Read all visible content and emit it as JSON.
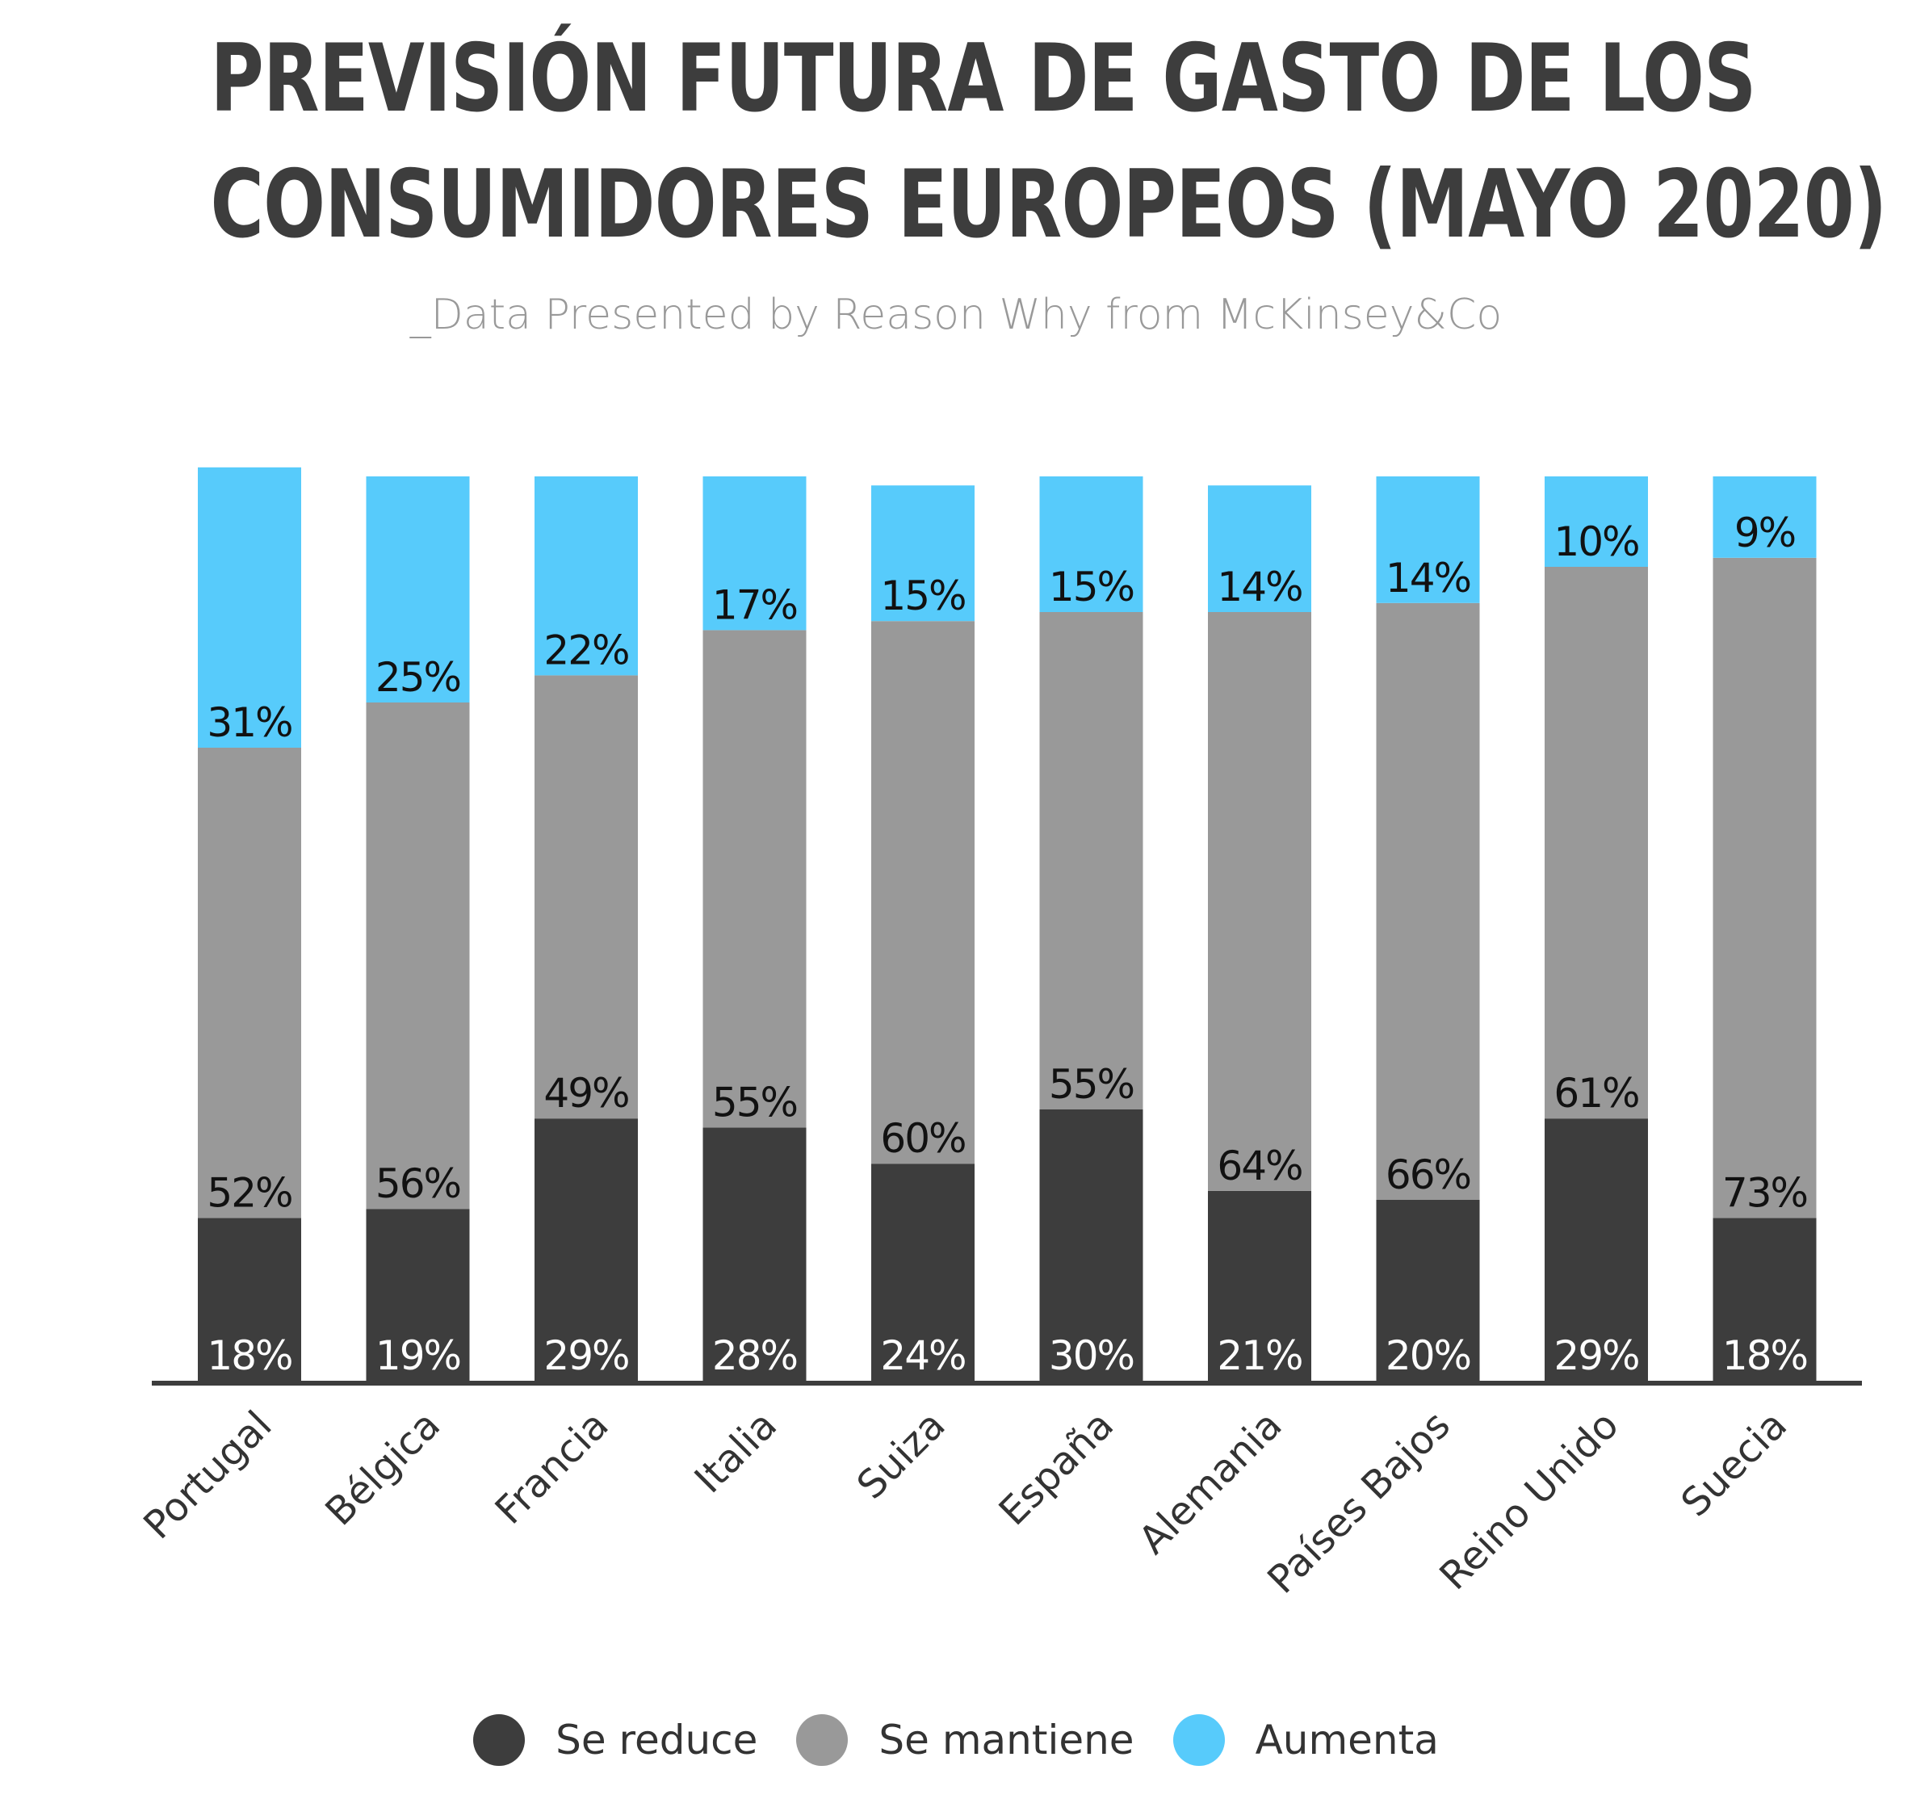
{
  "title_lines": [
    "PREVISIÓN FUTURA DE GASTO DE LOS",
    "CONSUMIDORES EUROPEOS (MAYO 2020)"
  ],
  "subtitle": "_Data Presented by Reason Why from McKinsey&Co",
  "chart_data": {
    "type": "bar",
    "stacked": true,
    "categories": [
      "Portugal",
      "Bélgica",
      "Francia",
      "Italia",
      "Suiza",
      "España",
      "Alemania",
      "Países Bajos",
      "Reino Unido",
      "Suecia"
    ],
    "series": [
      {
        "name": "Se reduce",
        "color": "#3d3d3d",
        "values": [
          18,
          19,
          29,
          28,
          24,
          30,
          21,
          20,
          29,
          18
        ],
        "labels": [
          "18%",
          "19%",
          "29%",
          "28%",
          "24%",
          "30%",
          "21%",
          "20%",
          "29%",
          "18%"
        ]
      },
      {
        "name": "Se mantiene",
        "color": "#999999",
        "values": [
          52,
          56,
          49,
          55,
          60,
          55,
          64,
          66,
          61,
          73
        ],
        "labels": [
          "52%",
          "56%",
          "49%",
          "55%",
          "60%",
          "55%",
          "64%",
          "66%",
          "61%",
          "73%"
        ]
      },
      {
        "name": "Aumenta",
        "color": "#57cbfb",
        "values": [
          31,
          25,
          22,
          17,
          15,
          15,
          14,
          14,
          10,
          9
        ],
        "labels": [
          "31%",
          "25%",
          "22%",
          "17%",
          "15%",
          "15%",
          "14%",
          "14%",
          "10%",
          "9%"
        ]
      }
    ],
    "legend_position": "bottom",
    "grid": false
  }
}
